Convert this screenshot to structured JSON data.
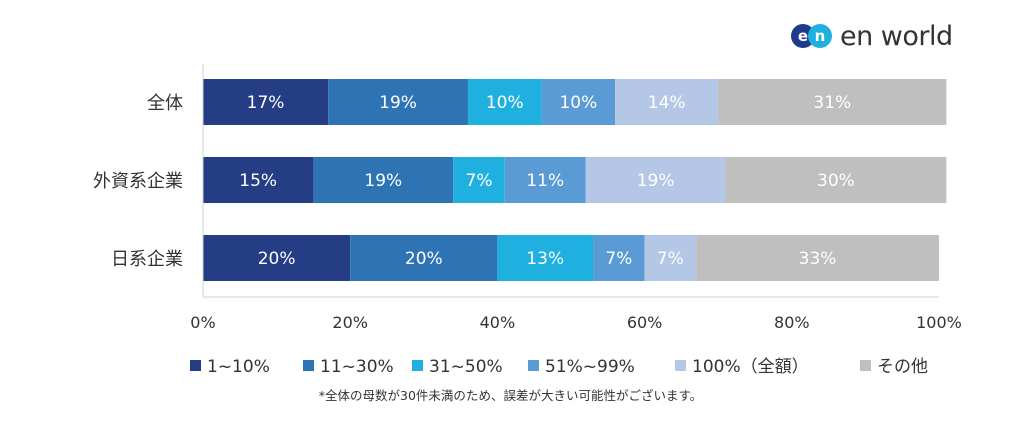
{
  "brand": {
    "logo_mark": "en",
    "logo_text": "en world"
  },
  "footnote": "*全体の母数が30件未満のため、誤差が大きい可能性がございます。",
  "chart_data": {
    "type": "bar",
    "orientation": "horizontal",
    "stacked": true,
    "categories": [
      "全体",
      "外資系企業",
      "日系企業"
    ],
    "series": [
      {
        "name": "1~10%",
        "color": "#253d85",
        "values": [
          17,
          15,
          20
        ]
      },
      {
        "name": "11~30%",
        "color": "#2e74b5",
        "values": [
          19,
          19,
          20
        ]
      },
      {
        "name": "31~50%",
        "color": "#1fb0e0",
        "values": [
          10,
          7,
          13
        ]
      },
      {
        "name": "51%~99%",
        "color": "#5b9bd5",
        "values": [
          10,
          11,
          7
        ]
      },
      {
        "name": "100%（全額）",
        "color": "#b4c7e7",
        "values": [
          14,
          19,
          7
        ]
      },
      {
        "name": "その他",
        "color": "#bfbfbf",
        "values": [
          31,
          30,
          33
        ]
      }
    ],
    "data_labels": [
      [
        "17%",
        "19%",
        "10%",
        "10%",
        "14%",
        "31%"
      ],
      [
        "15%",
        "19%",
        "7%",
        "11%",
        "19%",
        "30%"
      ],
      [
        "20%",
        "20%",
        "13%",
        "7%",
        "7%",
        "33%"
      ]
    ],
    "xlim": [
      0,
      100
    ],
    "x_ticks": [
      0,
      20,
      40,
      60,
      80,
      100
    ],
    "x_tick_labels": [
      "0%",
      "20%",
      "40%",
      "60%",
      "80%",
      "100%"
    ],
    "legend_position": "bottom",
    "grid": false
  }
}
